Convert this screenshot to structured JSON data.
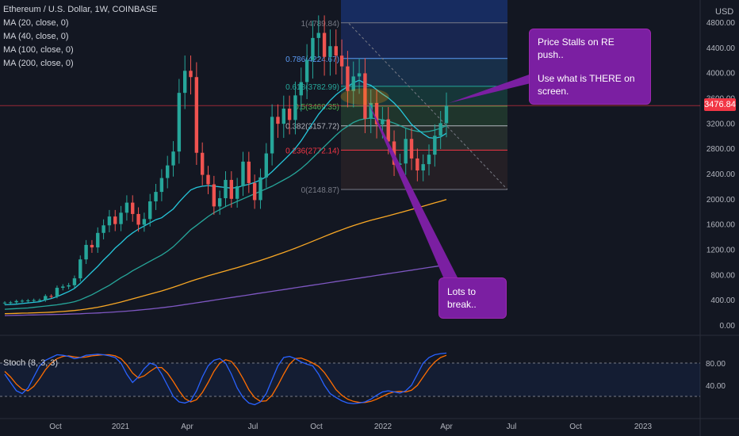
{
  "header": {
    "title": "Ethereum / U.S. Dollar, 1W, COINBASE",
    "indicators": [
      "MA (20, close, 0)",
      "MA (40, close, 0)",
      "MA (100, close, 0)",
      "MA (200, close, 0)"
    ],
    "currency": "USD"
  },
  "last_price": "3476.84",
  "stoch_label": "Stoch (8, 3, 3)",
  "annotations": {
    "callout_top_line1": "Price Stalls on RE push..",
    "callout_top_line2": "Use what is THERE on screen.",
    "callout_bottom": "Lots to break.."
  },
  "colors": {
    "up": "#26a69a",
    "down": "#ef5350",
    "ma20": "#26c6da",
    "ma40": "#26a69a",
    "ma100": "#f9a825",
    "ma200": "#7e57c2",
    "stoch_k": "#2962ff",
    "stoch_d": "#ff6d00",
    "callout": "#7b1fa2"
  },
  "chart_data": {
    "type": "candlestick",
    "y_ticks": [
      "4800.00",
      "4400.00",
      "4000.00",
      "3600.00",
      "3200.00",
      "2800.00",
      "2400.00",
      "2000.00",
      "1600.00",
      "1200.00",
      "800.00",
      "400.00",
      "0.00"
    ],
    "ylim": [
      0,
      4800
    ],
    "x_ticks": [
      "Oct",
      "2021",
      "Apr",
      "Jul",
      "Oct",
      "2022",
      "Apr",
      "Jul",
      "Oct",
      "2023"
    ],
    "stoch_ticks": [
      "80.00",
      "40.00"
    ],
    "fibonacci": [
      {
        "label": "1(4789.84)",
        "value": 4789.84
      },
      {
        "label": "0.786(4224.67)",
        "value": 4224.67
      },
      {
        "label": "0.618(3782.99)",
        "value": 3782.99
      },
      {
        "label": "0.5(3469.35)",
        "value": 3469.35
      },
      {
        "label": "0.382(3157.72)",
        "value": 3157.72
      },
      {
        "label": "0.236(2772.14)",
        "value": 2772.14
      },
      {
        "label": "0(2148.87)",
        "value": 2148.87
      }
    ],
    "candles_weekly_close_approx": [
      355,
      360,
      380,
      385,
      390,
      395,
      395,
      460,
      455,
      590,
      610,
      630,
      740,
      1040,
      1270,
      1230,
      1460,
      1580,
      1720,
      1600,
      1780,
      1940,
      1760,
      1590,
      1680,
      1960,
      2110,
      2330,
      2530,
      2750,
      3680,
      4030,
      3930,
      2730,
      2380,
      2230,
      1880,
      2010,
      2300,
      2000,
      2200,
      2590,
      2250,
      1980,
      2340,
      2720,
      3300,
      3190,
      3430,
      3250,
      3640,
      3850,
      4200,
      4550,
      4630,
      4250,
      4420,
      4270,
      4100,
      3710,
      3940,
      3990,
      3270,
      3520,
      3180,
      3260,
      2910,
      2540,
      2560,
      2950,
      2640,
      2450,
      2550,
      2700,
      3000,
      3200,
      3476
    ],
    "ma20_approx": [
      320,
      325,
      330,
      340,
      350,
      360,
      370,
      400,
      420,
      450,
      490,
      530,
      580,
      660,
      750,
      840,
      930,
      1030,
      1120,
      1220,
      1300,
      1390,
      1460,
      1520,
      1570,
      1620,
      1670,
      1700,
      1770,
      1840,
      1950,
      2050,
      2140,
      2180,
      2200,
      2210,
      2200,
      2190,
      2180,
      2170,
      2180,
      2210,
      2230,
      2260,
      2300,
      2350,
      2430,
      2520,
      2610,
      2700,
      2800,
      2920,
      3060,
      3200,
      3340,
      3450,
      3560,
      3650,
      3720,
      3780,
      3840,
      3880,
      3830,
      3800,
      3730,
      3660,
      3600,
      3520,
      3420,
      3300,
      3180,
      3100,
      3030,
      2970,
      2960,
      2980,
      3040
    ],
    "ma40_approx": [
      250,
      255,
      260,
      265,
      270,
      280,
      290,
      300,
      310,
      320,
      335,
      350,
      370,
      400,
      440,
      480,
      530,
      580,
      630,
      690,
      750,
      800,
      860,
      910,
      960,
      1010,
      1060,
      1110,
      1170,
      1240,
      1330,
      1420,
      1510,
      1580,
      1650,
      1720,
      1780,
      1830,
      1880,
      1920,
      1960,
      2000,
      2040,
      2080,
      2120,
      2160,
      2200,
      2250,
      2300,
      2350,
      2410,
      2480,
      2560,
      2650,
      2740,
      2830,
      2920,
      3010,
      3090,
      3150,
      3210,
      3250,
      3270,
      3280,
      3270,
      3250,
      3230,
      3200,
      3160,
      3120,
      3090,
      3070,
      3060,
      3070,
      3090,
      3120,
      3160
    ],
    "ma100_approx": [
      180,
      182,
      185,
      188,
      190,
      193,
      196,
      200,
      204,
      209,
      215,
      222,
      230,
      240,
      252,
      266,
      282,
      300,
      320,
      342,
      365,
      390,
      415,
      440,
      465,
      490,
      515,
      540,
      568,
      598,
      630,
      662,
      694,
      724,
      752,
      780,
      806,
      832,
      858,
      884,
      910,
      938,
      966,
      994,
      1024,
      1054,
      1086,
      1118,
      1150,
      1184,
      1218,
      1254,
      1290,
      1328,
      1366,
      1404,
      1440,
      1476,
      1510,
      1544,
      1576,
      1606,
      1634,
      1660,
      1684,
      1708,
      1732,
      1756,
      1780,
      1806,
      1832,
      1858,
      1884,
      1910,
      1936,
      1962,
      1990
    ],
    "ma200_approx": [
      150,
      152,
      154,
      156,
      158,
      160,
      162,
      164,
      166,
      168,
      170,
      173,
      176,
      179,
      183,
      187,
      191,
      196,
      201,
      207,
      213,
      220,
      228,
      236,
      245,
      254,
      264,
      274,
      285,
      297,
      310,
      324,
      338,
      352,
      366,
      380,
      394,
      408,
      422,
      436,
      450,
      464,
      478,
      492,
      506,
      520,
      534,
      548,
      562,
      576,
      590,
      604,
      618,
      632,
      646,
      660,
      674,
      688,
      702,
      716,
      730,
      744,
      758,
      772,
      786,
      800,
      814,
      828,
      842,
      856,
      870,
      884,
      898,
      912,
      926,
      940,
      955
    ],
    "stoch_k_approx": [
      60,
      45,
      30,
      25,
      35,
      55,
      75,
      85,
      90,
      95,
      94,
      92,
      88,
      90,
      94,
      95,
      96,
      95,
      93,
      90,
      80,
      60,
      45,
      55,
      70,
      80,
      76,
      60,
      40,
      20,
      10,
      8,
      12,
      30,
      55,
      75,
      85,
      88,
      80,
      60,
      35,
      18,
      8,
      5,
      10,
      25,
      50,
      75,
      90,
      92,
      88,
      82,
      78,
      75,
      60,
      40,
      25,
      18,
      12,
      8,
      7,
      8,
      10,
      15,
      22,
      28,
      30,
      28,
      26,
      30,
      40,
      60,
      80,
      90,
      95,
      97,
      98
    ],
    "stoch_d_approx": [
      65,
      55,
      42,
      33,
      30,
      38,
      52,
      68,
      80,
      88,
      92,
      93,
      91,
      90,
      91,
      93,
      94,
      95,
      95,
      93,
      88,
      77,
      62,
      53,
      57,
      65,
      72,
      72,
      62,
      47,
      30,
      16,
      10,
      14,
      27,
      45,
      65,
      80,
      86,
      83,
      70,
      52,
      32,
      18,
      11,
      12,
      22,
      40,
      60,
      78,
      88,
      89,
      85,
      80,
      74,
      63,
      48,
      32,
      22,
      15,
      11,
      9,
      9,
      11,
      15,
      20,
      25,
      28,
      29,
      28,
      31,
      40,
      55,
      70,
      82,
      90,
      94
    ]
  }
}
